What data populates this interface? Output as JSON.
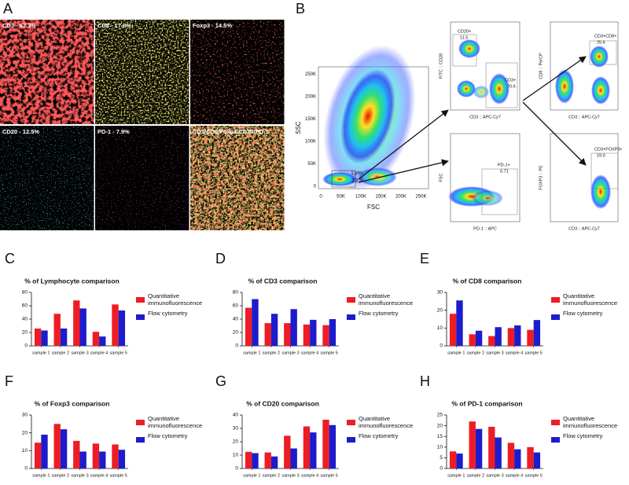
{
  "figure": {
    "panel_a": {
      "letter": "A",
      "tiles": [
        "CD3 - 57.3%",
        "CD8 - 17.8%",
        "Foxp3 - 14.5%",
        "CD20 - 12.5%",
        "PD-1 - 7.9%",
        "CD3/CD8/Foxp3/CD20/PD-1"
      ]
    },
    "panel_b": {
      "letter": "B",
      "main": {
        "xlabel": "FSC",
        "ylabel": "SSC",
        "xticks": [
          "0",
          "50K",
          "100K",
          "150K",
          "200K",
          "250K"
        ],
        "yticks": [
          "0",
          "50K",
          "100K",
          "150K",
          "200K",
          "250K"
        ],
        "gate": "Lym",
        "gate_value": "23.0"
      },
      "plots": [
        {
          "xlabel": "CD3 :: APC-Cy7",
          "ylabel": "FITC :: CD20",
          "gates": [
            {
              "name": "CD20+",
              "value": "11.5"
            },
            {
              "name": "CD3+",
              "value": "70.6"
            }
          ]
        },
        {
          "xlabel": "CD3 :: APC-Cy7",
          "ylabel": "CD8 :: PerCP",
          "gates": [
            {
              "name": "CD3+CD8+",
              "value": "25.6"
            }
          ]
        },
        {
          "xlabel": "PD-1 :: APC",
          "ylabel": "FSC",
          "gates": [
            {
              "name": "PD-1+",
              "value": "6.71"
            }
          ]
        },
        {
          "xlabel": "CD3 :: APC-Cy7",
          "ylabel": "FOXP3 :: PE",
          "gates": [
            {
              "name": "CD3+FOXP3+",
              "value": "19.0"
            }
          ]
        }
      ]
    }
  },
  "chart_data": [
    {
      "type": "bar",
      "panel": "C",
      "title": "% of Lymphocyte comparison",
      "categories": [
        "sample 1",
        "sample 2",
        "sample 3",
        "sample 4",
        "sample 5"
      ],
      "ylim": [
        0,
        80
      ],
      "yticks": [
        0,
        20,
        40,
        60,
        80
      ],
      "legend": "right",
      "series": [
        {
          "name": "Quantitative immunofluorescence",
          "color": "#ee1c24",
          "values": [
            26,
            48,
            68,
            21,
            62
          ]
        },
        {
          "name": "Flow cytometry",
          "color": "#1c1ccc",
          "values": [
            23,
            26,
            56,
            14,
            53
          ]
        }
      ]
    },
    {
      "type": "bar",
      "panel": "D",
      "title": "% of CD3 comparison",
      "categories": [
        "sample 1",
        "sample 2",
        "sample 3",
        "sample 4",
        "sample 5"
      ],
      "ylim": [
        0,
        80
      ],
      "yticks": [
        0,
        20,
        40,
        60,
        80
      ],
      "legend": "right",
      "series": [
        {
          "name": "Quantitative immunofluorescence",
          "color": "#ee1c24",
          "values": [
            57,
            34,
            34,
            32,
            31
          ]
        },
        {
          "name": "Flow cytometry",
          "color": "#1c1ccc",
          "values": [
            70,
            48,
            55,
            39,
            40
          ]
        }
      ]
    },
    {
      "type": "bar",
      "panel": "E",
      "title": "% of CD8 comparison",
      "categories": [
        "sample 1",
        "sample 2",
        "sample 3",
        "sample 4",
        "sample 5"
      ],
      "ylim": [
        0,
        30
      ],
      "yticks": [
        0,
        10,
        20,
        30
      ],
      "legend": "right",
      "series": [
        {
          "name": "Quantitative immunofluorescence",
          "color": "#ee1c24",
          "values": [
            18,
            6.5,
            5.5,
            10,
            9
          ]
        },
        {
          "name": "Flow cytometry",
          "color": "#1c1ccc",
          "values": [
            25.5,
            8.5,
            10.5,
            11.5,
            14.5
          ]
        }
      ]
    },
    {
      "type": "bar",
      "panel": "F",
      "title": "% of Foxp3 comparison",
      "categories": [
        "sample 1",
        "sample 2",
        "sample 3",
        "sample 4",
        "sample 5"
      ],
      "ylim": [
        0,
        30
      ],
      "yticks": [
        0,
        10,
        20,
        30
      ],
      "legend": "right",
      "series": [
        {
          "name": "Quantitative immunofluorescence",
          "color": "#ee1c24",
          "values": [
            14.5,
            25,
            15.5,
            14,
            13.5
          ]
        },
        {
          "name": "Flow cytometry",
          "color": "#1c1ccc",
          "values": [
            19,
            22,
            9.5,
            9.5,
            10.5
          ]
        }
      ]
    },
    {
      "type": "bar",
      "panel": "G",
      "title": "% of CD20 comparison",
      "categories": [
        "sample 1",
        "sample 2",
        "sample 3",
        "sample 4",
        "sample 5"
      ],
      "ylim": [
        0,
        40
      ],
      "yticks": [
        0,
        10,
        20,
        30,
        40
      ],
      "legend": "right",
      "series": [
        {
          "name": "Quantitative immunofluorescence",
          "color": "#ee1c24",
          "values": [
            12.5,
            12,
            24.5,
            31.5,
            36.5
          ]
        },
        {
          "name": "Flow cytometry",
          "color": "#1c1ccc",
          "values": [
            11.5,
            9,
            15,
            27,
            32.5
          ]
        }
      ]
    },
    {
      "type": "bar",
      "panel": "H",
      "title": "% of PD-1 comparison",
      "categories": [
        "sample 1",
        "sample 2",
        "sample 3",
        "sample 4",
        "sample 5"
      ],
      "ylim": [
        0,
        25
      ],
      "yticks": [
        0,
        5,
        10,
        15,
        20,
        25
      ],
      "legend": "right",
      "series": [
        {
          "name": "Quantitative immunofluorescence",
          "color": "#ee1c24",
          "values": [
            8,
            22,
            19.5,
            12,
            10
          ]
        },
        {
          "name": "Flow cytometry",
          "color": "#1c1ccc",
          "values": [
            7,
            18.5,
            14.5,
            9,
            7.5
          ]
        }
      ]
    }
  ]
}
